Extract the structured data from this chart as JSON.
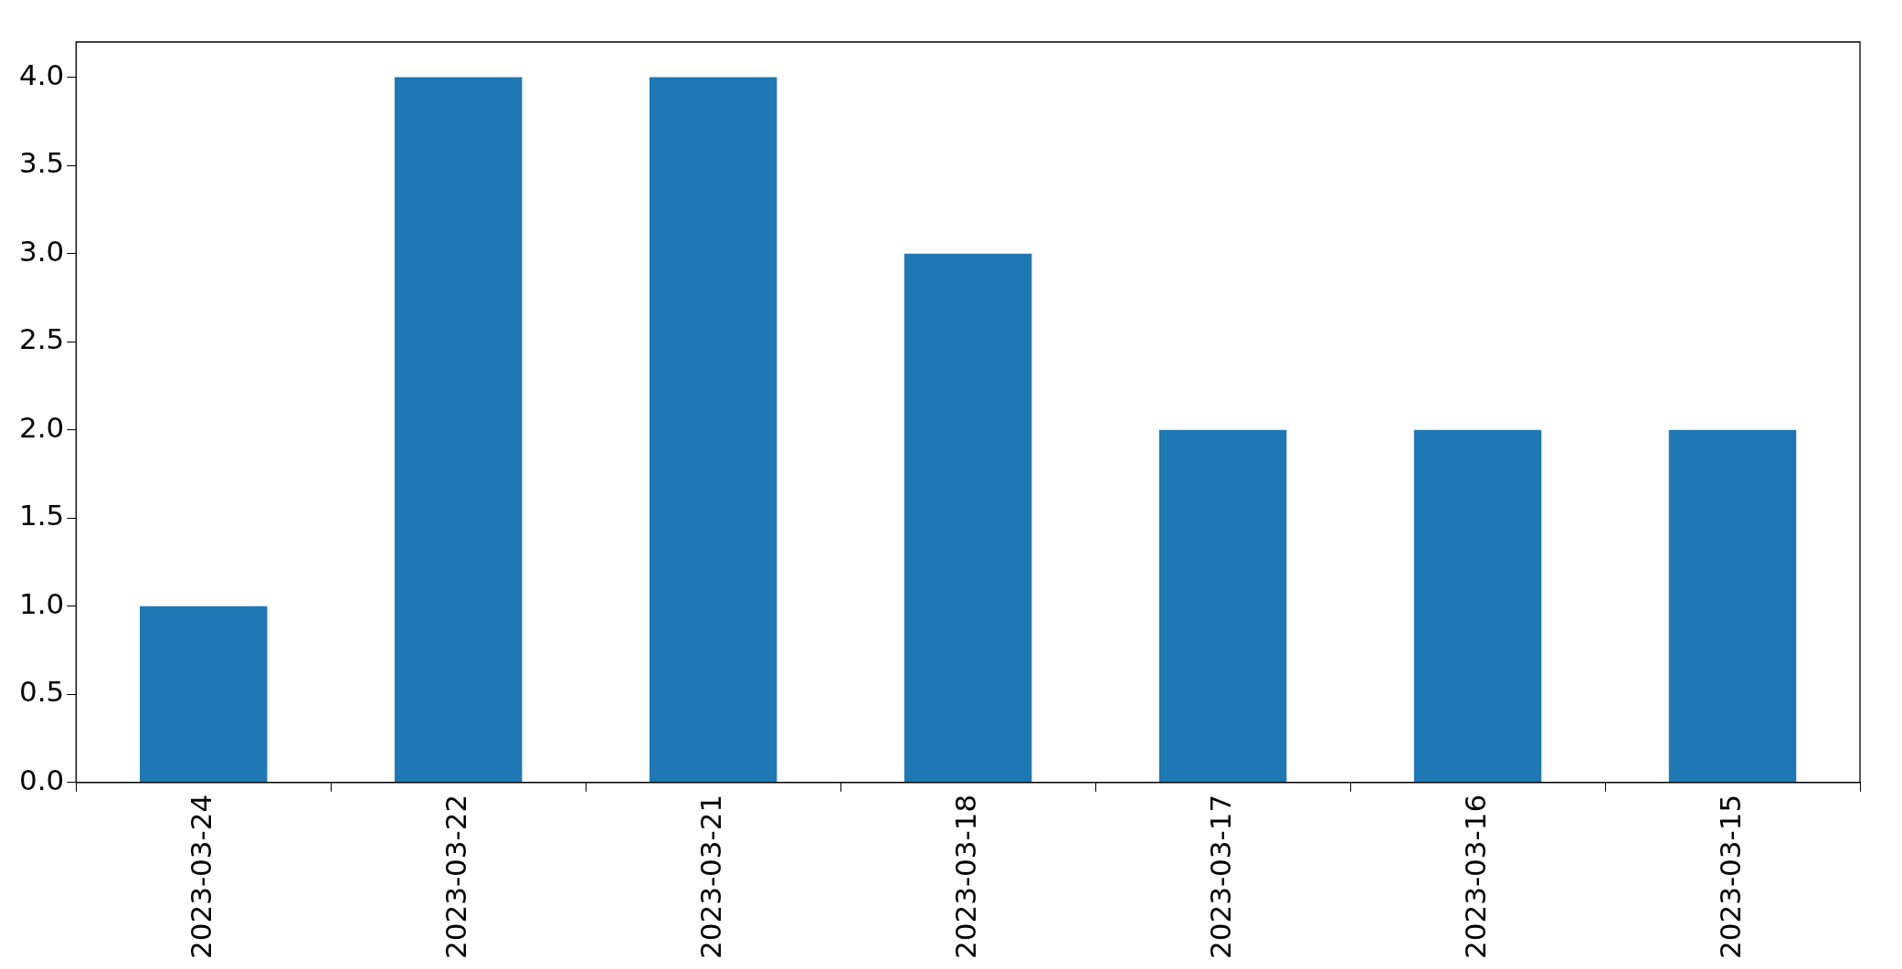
{
  "chart_data": {
    "type": "bar",
    "categories": [
      "2023-03-24",
      "2023-03-22",
      "2023-03-21",
      "2023-03-18",
      "2023-03-17",
      "2023-03-16",
      "2023-03-15"
    ],
    "values": [
      1,
      4,
      4,
      3,
      2,
      2,
      2
    ],
    "color": "#1f77b4",
    "ylim": [
      0,
      4.2
    ],
    "yticks": [
      {
        "value": 0,
        "label": "0.0"
      },
      0.5,
      {
        "value": 1,
        "label": "1.0"
      },
      1.5,
      {
        "value": 2,
        "label": "2.0"
      },
      2.5,
      {
        "value": 3,
        "label": "3.0"
      },
      3.5,
      {
        "value": 4,
        "label": "4.0"
      }
    ],
    "grid": false,
    "legend": false
  }
}
